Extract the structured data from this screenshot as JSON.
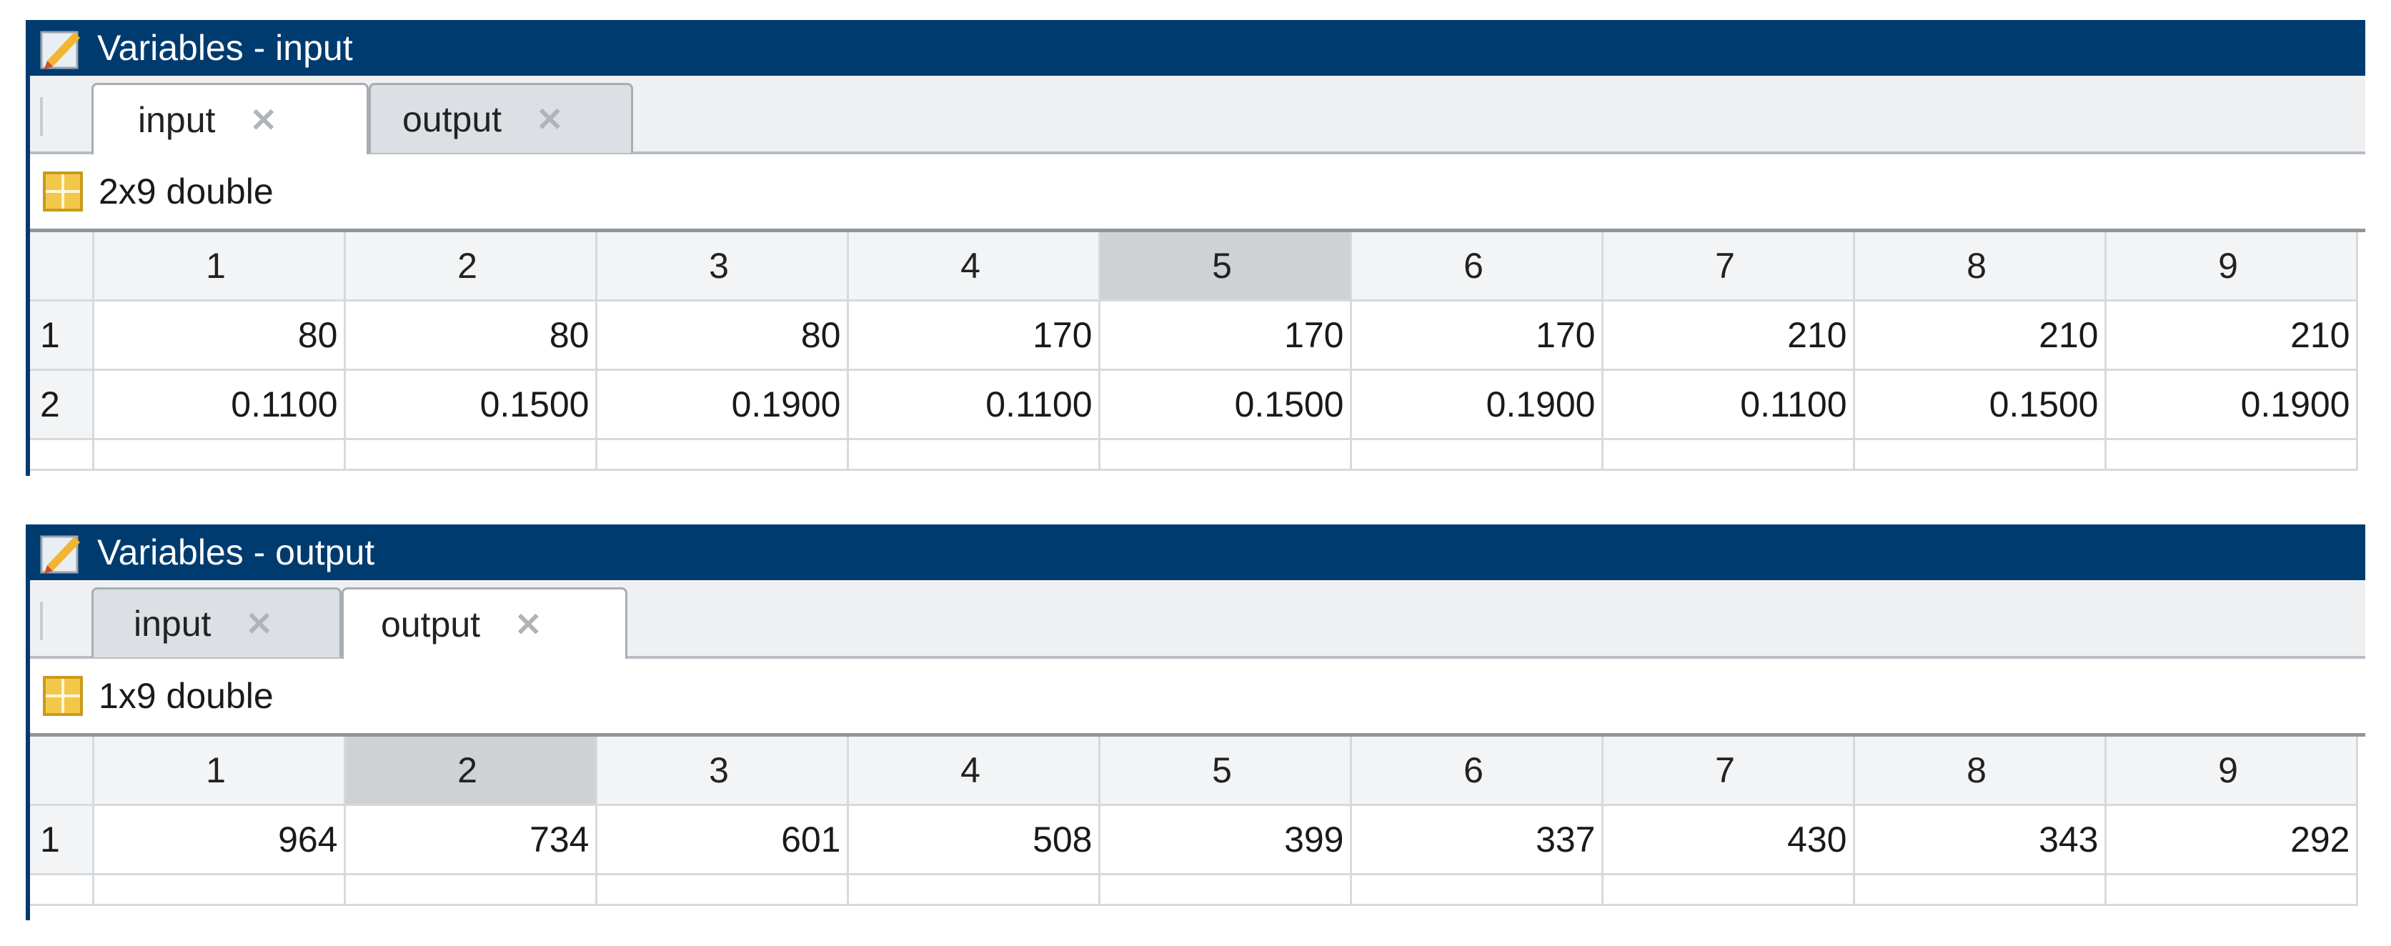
{
  "panels": [
    {
      "title": "Variables - input",
      "tabs": [
        {
          "label": "input",
          "active": true
        },
        {
          "label": "output",
          "active": false
        }
      ],
      "info": "2x9 double",
      "columns": [
        "1",
        "2",
        "3",
        "4",
        "5",
        "6",
        "7",
        "8",
        "9"
      ],
      "selected_column": "5",
      "rows": [
        {
          "label": "1",
          "cells": [
            "80",
            "80",
            "80",
            "170",
            "170",
            "170",
            "210",
            "210",
            "210"
          ]
        },
        {
          "label": "2",
          "cells": [
            "0.1100",
            "0.1500",
            "0.1900",
            "0.1100",
            "0.1500",
            "0.1900",
            "0.1100",
            "0.1500",
            "0.1900"
          ]
        }
      ]
    },
    {
      "title": "Variables - output",
      "tabs": [
        {
          "label": "input",
          "active": false
        },
        {
          "label": "output",
          "active": true
        }
      ],
      "info": "1x9 double",
      "columns": [
        "1",
        "2",
        "3",
        "4",
        "5",
        "6",
        "7",
        "8",
        "9"
      ],
      "selected_column": "2",
      "rows": [
        {
          "label": "1",
          "cells": [
            "964",
            "734",
            "601",
            "508",
            "399",
            "337",
            "430",
            "343",
            "292"
          ]
        }
      ]
    }
  ],
  "icons": {
    "title_icon": "variable-editor-icon",
    "tab_close": "close-icon",
    "grid": "matrix-grid-icon"
  },
  "colors": {
    "titlebar": "#003b6f",
    "selected_header": "#cfd2d5",
    "grid_icon": "#f3c74a"
  }
}
